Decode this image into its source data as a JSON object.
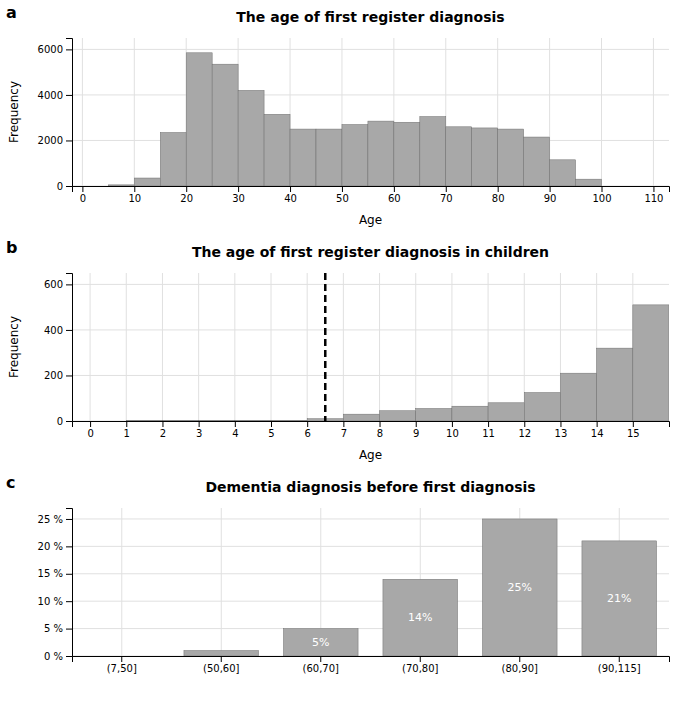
{
  "chart_data": [
    {
      "type": "histogram",
      "title": "The age of first register diagnosis",
      "xlabel": "Age",
      "ylabel": "Frequency",
      "annotations": [
        "a"
      ],
      "bins": [
        0,
        5,
        10,
        15,
        20,
        25,
        30,
        35,
        40,
        45,
        50,
        55,
        60,
        65,
        70,
        75,
        80,
        85,
        90,
        95,
        100,
        105,
        110
      ],
      "values": [
        0,
        50,
        350,
        2350,
        5850,
        5350,
        4200,
        3150,
        2500,
        2500,
        2700,
        2850,
        2800,
        3050,
        2600,
        2550,
        2500,
        2150,
        1150,
        300,
        0,
        0
      ],
      "color": "#a8a8a8",
      "xlim": [
        -2,
        113
      ],
      "xticks": [
        0,
        10,
        20,
        30,
        40,
        50,
        60,
        70,
        80,
        90,
        100,
        110
      ],
      "ylim": [
        0,
        6500
      ],
      "yticks": [
        0,
        2000,
        4000,
        6000
      ],
      "grid": true
    },
    {
      "type": "histogram",
      "title": "The age of first register diagnosis in children",
      "xlabel": "Age",
      "ylabel": "Frequency",
      "annotations": [
        "b"
      ],
      "bins": [
        0,
        1,
        2,
        3,
        4,
        5,
        6,
        7,
        8,
        9,
        10,
        11,
        12,
        13,
        14,
        15,
        16
      ],
      "values": [
        0,
        2,
        2,
        2,
        2,
        2,
        10,
        30,
        45,
        55,
        65,
        80,
        125,
        210,
        320,
        510
      ],
      "vline": 6.5,
      "color": "#a8a8a8",
      "xlim": [
        -0.5,
        16
      ],
      "xticks": [
        0,
        1,
        2,
        3,
        4,
        5,
        6,
        7,
        8,
        9,
        10,
        11,
        12,
        13,
        14,
        15
      ],
      "ylim": [
        0,
        650
      ],
      "yticks": [
        0,
        200,
        400,
        600
      ],
      "grid": true
    },
    {
      "type": "bar",
      "title": "Dementia diagnosis before first diagnosis",
      "annotations": [
        "c"
      ],
      "categories": [
        "(7,50]",
        "(50,60]",
        "(60,70]",
        "(70,80]",
        "(80,90]",
        "(90,115]"
      ],
      "values": [
        0,
        1,
        5,
        14,
        25,
        21
      ],
      "value_labels": [
        null,
        null,
        "5%",
        "14%",
        "25%",
        "21%"
      ],
      "data_labels": true,
      "color": "#a8a8a8",
      "ylim": [
        0,
        27
      ],
      "yticks": [
        {
          "value": 0,
          "label": "0 %"
        },
        {
          "value": 5,
          "label": "5 %"
        },
        {
          "value": 10,
          "label": "10 %"
        },
        {
          "value": 15,
          "label": "15 %"
        },
        {
          "value": 20,
          "label": "20 %"
        },
        {
          "value": 25,
          "label": "25 %"
        }
      ],
      "grid": true
    }
  ]
}
